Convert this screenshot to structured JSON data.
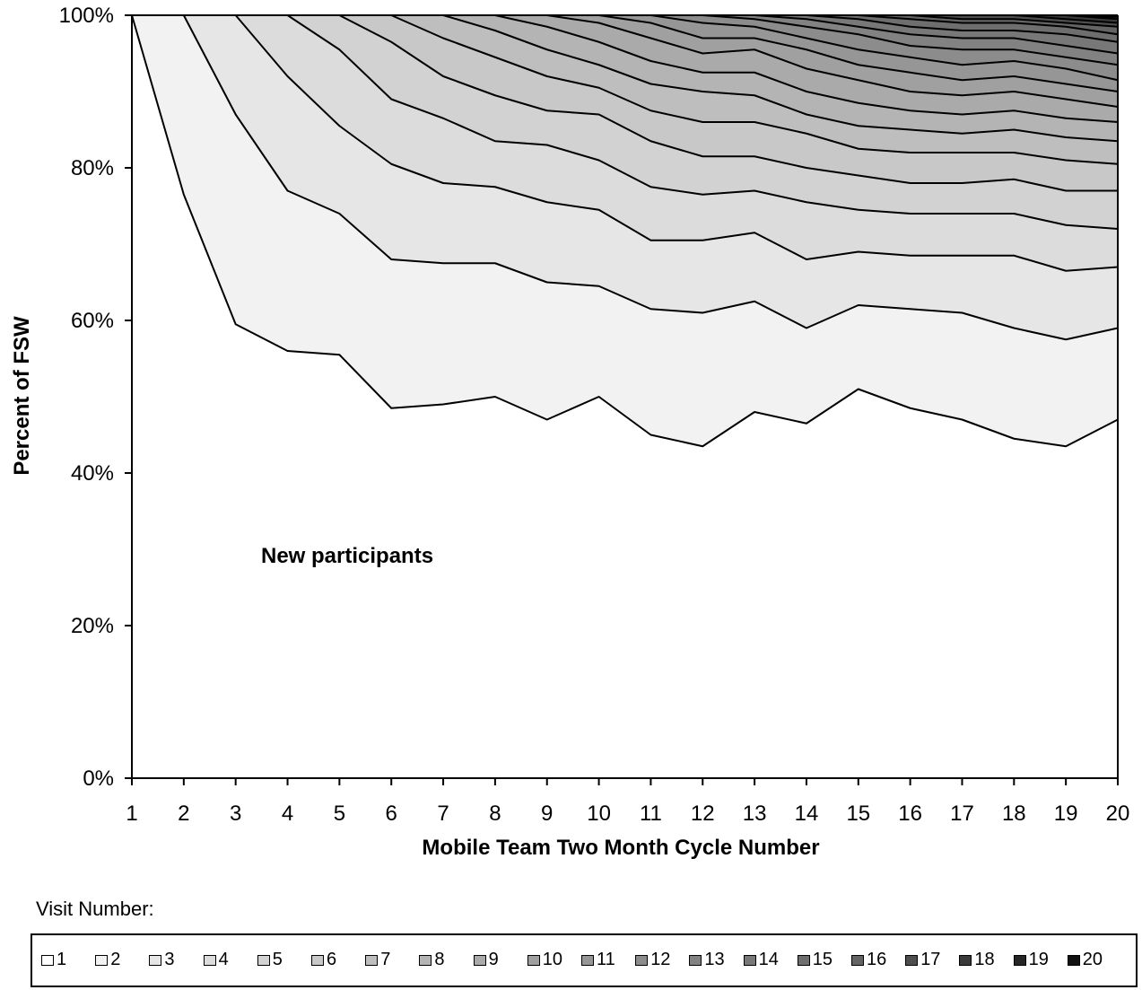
{
  "chart_data": {
    "type": "area",
    "stacked": true,
    "normalized": true,
    "ylabel": "Percent of FSW",
    "xlabel": "Mobile Team Two Month Cycle Number",
    "annotation": "New participants",
    "legend_title": "Visit Number:",
    "legend_position": "bottom",
    "x": [
      1,
      2,
      3,
      4,
      5,
      6,
      7,
      8,
      9,
      10,
      11,
      12,
      13,
      14,
      15,
      16,
      17,
      18,
      19,
      20
    ],
    "ylim": [
      0,
      100
    ],
    "y_ticks": [
      "0%",
      "20%",
      "40%",
      "60%",
      "80%",
      "100%"
    ],
    "grid": false,
    "cumulative_boundaries_percent": [
      {
        "name": "1",
        "values": [
          100,
          76.5,
          59.5,
          56,
          55.5,
          48.5,
          49,
          50,
          47,
          50,
          45,
          43.5,
          48,
          46.5,
          51,
          48.5,
          47,
          44.5,
          43.5,
          47
        ]
      },
      {
        "name": "2",
        "values": [
          100,
          100,
          87,
          77,
          74,
          68,
          67.5,
          67.5,
          65,
          64.5,
          61.5,
          61,
          62.5,
          59,
          62,
          61.5,
          61,
          59,
          57.5,
          59
        ]
      },
      {
        "name": "3",
        "values": [
          100,
          100,
          100,
          92,
          85.5,
          80.5,
          78,
          77.5,
          75.5,
          74.5,
          70.5,
          70.5,
          71.5,
          68,
          69,
          68.5,
          68.5,
          68.5,
          66.5,
          67
        ]
      },
      {
        "name": "4",
        "values": [
          100,
          100,
          100,
          100,
          95.5,
          89,
          86.5,
          83.5,
          83,
          81,
          77.5,
          76.5,
          77,
          75.5,
          74.5,
          74,
          74,
          74,
          72.5,
          72
        ]
      },
      {
        "name": "5",
        "values": [
          100,
          100,
          100,
          100,
          100,
          96.5,
          92,
          89.5,
          87.5,
          87,
          83.5,
          81.5,
          81.5,
          80,
          79,
          78,
          78,
          78.5,
          77,
          77
        ]
      },
      {
        "name": "6",
        "values": [
          100,
          100,
          100,
          100,
          100,
          100,
          97,
          94.5,
          92,
          90.5,
          87.5,
          86,
          86,
          84.5,
          82.5,
          82,
          82,
          82,
          81,
          80.5
        ]
      },
      {
        "name": "7",
        "values": [
          100,
          100,
          100,
          100,
          100,
          100,
          100,
          98,
          95.5,
          93.5,
          91,
          90,
          89.5,
          87,
          85.5,
          85,
          84.5,
          85,
          84,
          83.5
        ]
      },
      {
        "name": "8",
        "values": [
          100,
          100,
          100,
          100,
          100,
          100,
          100,
          100,
          98.5,
          96.5,
          94,
          92.5,
          92.5,
          90,
          88.5,
          87.5,
          87,
          87.5,
          86.5,
          86
        ]
      },
      {
        "name": "9",
        "values": [
          100,
          100,
          100,
          100,
          100,
          100,
          100,
          100,
          100,
          99,
          97,
          95,
          95.5,
          93,
          91.5,
          90,
          89.5,
          90,
          89,
          88
        ]
      },
      {
        "name": "10",
        "values": [
          100,
          100,
          100,
          100,
          100,
          100,
          100,
          100,
          100,
          100,
          99,
          97,
          97,
          95.5,
          93.5,
          92.5,
          91.5,
          92,
          91,
          90
        ]
      },
      {
        "name": "11",
        "values": [
          100,
          100,
          100,
          100,
          100,
          100,
          100,
          100,
          100,
          100,
          100,
          99,
          98.5,
          97,
          95.5,
          94.5,
          93.5,
          94,
          93,
          91.5
        ]
      },
      {
        "name": "12",
        "values": [
          100,
          100,
          100,
          100,
          100,
          100,
          100,
          100,
          100,
          100,
          100,
          100,
          99.5,
          98.5,
          97.5,
          96,
          95.5,
          95.5,
          94.5,
          93.5
        ]
      },
      {
        "name": "13",
        "values": [
          100,
          100,
          100,
          100,
          100,
          100,
          100,
          100,
          100,
          100,
          100,
          100,
          100,
          99.5,
          98.5,
          97.5,
          97,
          97,
          96,
          95
        ]
      },
      {
        "name": "14",
        "values": [
          100,
          100,
          100,
          100,
          100,
          100,
          100,
          100,
          100,
          100,
          100,
          100,
          100,
          100,
          99.5,
          98.5,
          98,
          98,
          97.5,
          96.5
        ]
      },
      {
        "name": "15",
        "values": [
          100,
          100,
          100,
          100,
          100,
          100,
          100,
          100,
          100,
          100,
          100,
          100,
          100,
          100,
          100,
          99.5,
          99,
          99,
          98.5,
          97.5
        ]
      },
      {
        "name": "16",
        "values": [
          100,
          100,
          100,
          100,
          100,
          100,
          100,
          100,
          100,
          100,
          100,
          100,
          100,
          100,
          100,
          100,
          99.5,
          99.5,
          99,
          98.5
        ]
      },
      {
        "name": "17",
        "values": [
          100,
          100,
          100,
          100,
          100,
          100,
          100,
          100,
          100,
          100,
          100,
          100,
          100,
          100,
          100,
          100,
          100,
          100,
          99.5,
          99
        ]
      },
      {
        "name": "18",
        "values": [
          100,
          100,
          100,
          100,
          100,
          100,
          100,
          100,
          100,
          100,
          100,
          100,
          100,
          100,
          100,
          100,
          100,
          100,
          100,
          99.5
        ]
      },
      {
        "name": "19",
        "values": [
          100,
          100,
          100,
          100,
          100,
          100,
          100,
          100,
          100,
          100,
          100,
          100,
          100,
          100,
          100,
          100,
          100,
          100,
          100,
          99.8
        ]
      },
      {
        "name": "20",
        "values": [
          100,
          100,
          100,
          100,
          100,
          100,
          100,
          100,
          100,
          100,
          100,
          100,
          100,
          100,
          100,
          100,
          100,
          100,
          100,
          100
        ]
      }
    ],
    "series_colors": [
      "#ffffff",
      "#f2f2f2",
      "#e6e6e6",
      "#dcdcdc",
      "#d2d2d2",
      "#c8c8c8",
      "#bebebe",
      "#b4b4b4",
      "#aaaaaa",
      "#a0a0a0",
      "#969696",
      "#8c8c8c",
      "#828282",
      "#787878",
      "#6e6e6e",
      "#646464",
      "#4e4e4e",
      "#3a3a3a",
      "#262626",
      "#111111"
    ]
  }
}
